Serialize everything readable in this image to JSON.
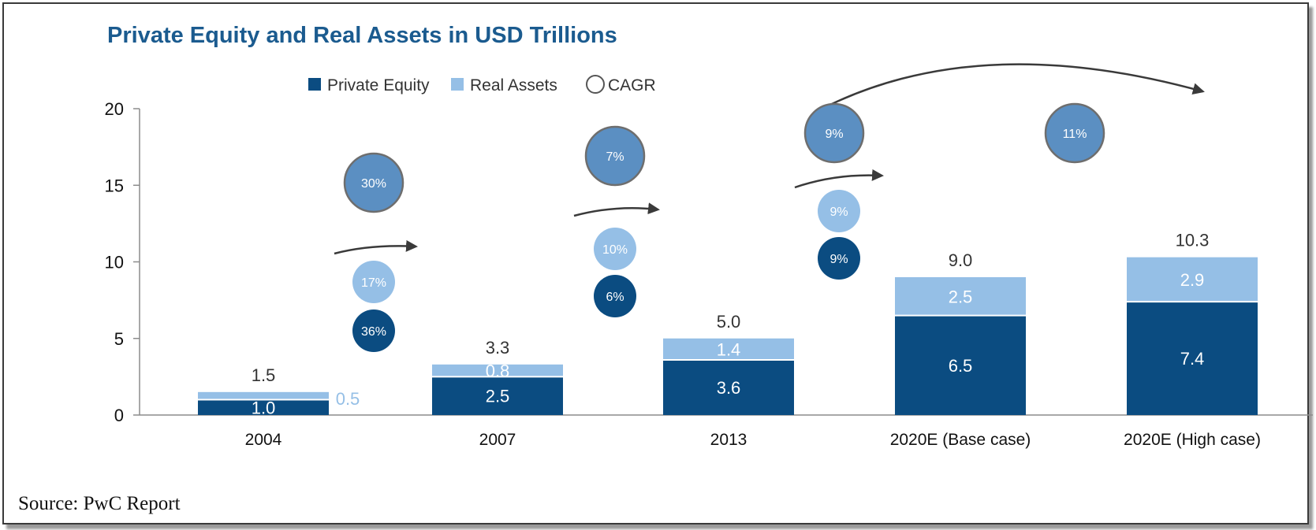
{
  "chart_data": {
    "type": "bar",
    "stacked": true,
    "title": "Private Equity and Real Assets in USD Trillions",
    "categories": [
      "2004",
      "2007",
      "2013",
      "2020E (Base case)",
      "2020E (High case)"
    ],
    "series": [
      {
        "name": "Private Equity",
        "values": [
          1.0,
          2.5,
          3.6,
          6.5,
          7.4
        ],
        "labels": [
          "1.0",
          "2.5",
          "3.6",
          "6.5",
          "7.4"
        ],
        "color": "#0b4c81"
      },
      {
        "name": "Real Assets",
        "values": [
          0.5,
          0.8,
          1.4,
          2.5,
          2.9
        ],
        "labels": [
          "0.5",
          "0.8",
          "1.4",
          "2.5",
          "2.9"
        ],
        "color": "#95bfe6"
      }
    ],
    "totals": [
      "1.5",
      "3.3",
      "5.0",
      "9.0",
      "10.3"
    ],
    "ylim": [
      0,
      20
    ],
    "yticks": [
      "0",
      "5",
      "10",
      "15",
      "20"
    ],
    "grid": false,
    "legend": {
      "placement": "top",
      "items": [
        {
          "label": "Private Equity",
          "color": "#0b4c81",
          "shape": "square"
        },
        {
          "label": "Real Assets",
          "color": "#95bfe6",
          "shape": "square"
        },
        {
          "label": "CAGR",
          "color": "#555555",
          "shape": "circle"
        }
      ]
    },
    "cagr": [
      {
        "period": "2004-2007",
        "total": "30%",
        "real_assets": "17%",
        "private_equity": "36%"
      },
      {
        "period": "2007-2013",
        "total": "7%",
        "real_assets": "10%",
        "private_equity": "6%"
      },
      {
        "period": "2013-2020E (Base case)",
        "total": "9%",
        "real_assets": "9%",
        "private_equity": "9%"
      },
      {
        "period": "2013-2020E (High case)",
        "total": "11%"
      }
    ],
    "colors": {
      "private_equity": "#0b4c81",
      "real_assets": "#95bfe6",
      "cagr_total": "#5b8fc2",
      "title": "#1b5b8f"
    }
  },
  "source": "Source: PwC Report"
}
